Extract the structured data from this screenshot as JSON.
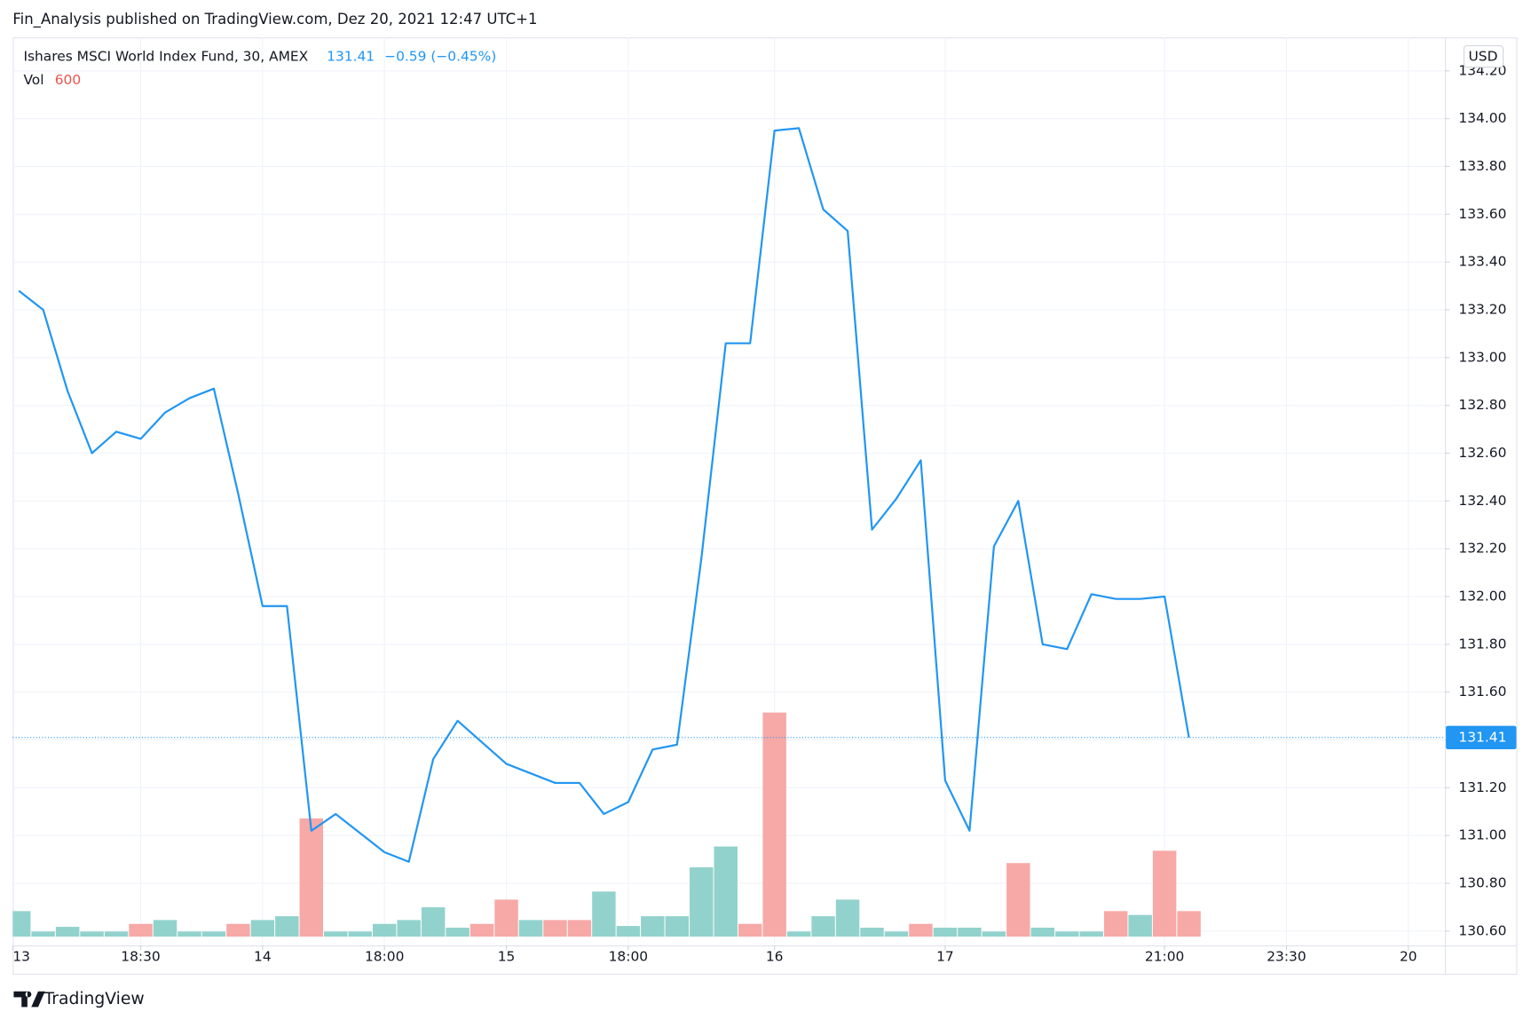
{
  "header": "Fin_Analysis published on TradingView.com, Dez 20, 2021 12:47 UTC+1",
  "footer": "TradingView",
  "chart_data": {
    "type": "line",
    "title": "Ishares MSCI World Index Fund, 30, AMEX",
    "change_label": "−0.59 (−0.45%)",
    "currency": "USD",
    "volume_label": "Vol",
    "grid": true,
    "xlim": [
      -0.25,
      58.5
    ],
    "xticks": [
      {
        "value": -0.25,
        "label": "13"
      },
      {
        "value": 5,
        "label": "18:30"
      },
      {
        "value": 10,
        "label": "14"
      },
      {
        "value": 15,
        "label": "18:00"
      },
      {
        "value": 20,
        "label": "15"
      },
      {
        "value": 25,
        "label": "18:00"
      },
      {
        "value": 31,
        "label": "16"
      },
      {
        "value": 38,
        "label": "17"
      },
      {
        "value": 47,
        "label": "21:00"
      },
      {
        "value": 52,
        "label": "23:30"
      },
      {
        "value": 57,
        "label": "20"
      }
    ],
    "ylim": [
      130.54,
      134.34
    ],
    "yticks": [
      {
        "value": 130.6,
        "label": "130.60"
      },
      {
        "value": 130.8,
        "label": "130.80"
      },
      {
        "value": 131,
        "label": "131.00"
      },
      {
        "value": 131.2,
        "label": "131.20"
      },
      {
        "value": 131.4,
        "label": "131.40"
      },
      {
        "value": 131.6,
        "label": "131.60"
      },
      {
        "value": 131.8,
        "label": "131.80"
      },
      {
        "value": 132,
        "label": "132.00"
      },
      {
        "value": 132.2,
        "label": "132.20"
      },
      {
        "value": 132.4,
        "label": "132.40"
      },
      {
        "value": 132.6,
        "label": "132.60"
      },
      {
        "value": 132.8,
        "label": "132.80"
      },
      {
        "value": 133,
        "label": "133.00"
      },
      {
        "value": 133.2,
        "label": "133.20"
      },
      {
        "value": 133.4,
        "label": "133.40"
      },
      {
        "value": 133.6,
        "label": "133.60"
      },
      {
        "value": 133.8,
        "label": "133.80"
      },
      {
        "value": 134,
        "label": "134.00"
      },
      {
        "value": 134.2,
        "label": "134.20"
      }
    ],
    "series": [
      {
        "name": "Ishares MSCI World Index Fund",
        "color": "#2196f3",
        "values": [
          133.28,
          133.2,
          132.86,
          132.6,
          132.69,
          132.66,
          132.77,
          132.83,
          132.87,
          132.43,
          131.96,
          131.96,
          131.02,
          131.09,
          131.01,
          130.93,
          130.89,
          131.32,
          131.48,
          131.39,
          131.3,
          131.26,
          131.22,
          131.22,
          131.09,
          131.14,
          131.36,
          131.38,
          132.16,
          133.06,
          133.06,
          133.95,
          133.96,
          133.62,
          133.53,
          132.28,
          132.41,
          132.57,
          131.23,
          131.02,
          132.21,
          132.4,
          131.8,
          131.78,
          132.01,
          131.99,
          131.99,
          132.0,
          131.41
        ]
      }
    ],
    "volume": [
      600,
      120,
      230,
      120,
      120,
      300,
      390,
      120,
      120,
      300,
      390,
      480,
      2780,
      120,
      120,
      300,
      390,
      690,
      210,
      300,
      870,
      390,
      390,
      390,
      1060,
      250,
      480,
      480,
      1630,
      2120,
      300,
      5270,
      120,
      480,
      870,
      210,
      120,
      300,
      210,
      210,
      120,
      1730,
      210,
      120,
      120,
      600,
      510,
      2020,
      600
    ],
    "volume_colors": [
      "#92d2cc",
      "#92d2cc",
      "#92d2cc",
      "#92d2cc",
      "#92d2cc",
      "#f7a9a7",
      "#92d2cc",
      "#92d2cc",
      "#92d2cc",
      "#f7a9a7",
      "#92d2cc",
      "#92d2cc",
      "#f7a9a7",
      "#92d2cc",
      "#92d2cc",
      "#92d2cc",
      "#92d2cc",
      "#92d2cc",
      "#92d2cc",
      "#f7a9a7",
      "#f7a9a7",
      "#92d2cc",
      "#f7a9a7",
      "#f7a9a7",
      "#92d2cc",
      "#92d2cc",
      "#92d2cc",
      "#92d2cc",
      "#92d2cc",
      "#92d2cc",
      "#f7a9a7",
      "#f7a9a7",
      "#92d2cc",
      "#92d2cc",
      "#92d2cc",
      "#92d2cc",
      "#92d2cc",
      "#f7a9a7",
      "#92d2cc",
      "#92d2cc",
      "#92d2cc",
      "#f7a9a7",
      "#92d2cc",
      "#92d2cc",
      "#92d2cc",
      "#f7a9a7",
      "#92d2cc",
      "#f7a9a7",
      "#f7a9a7"
    ]
  }
}
